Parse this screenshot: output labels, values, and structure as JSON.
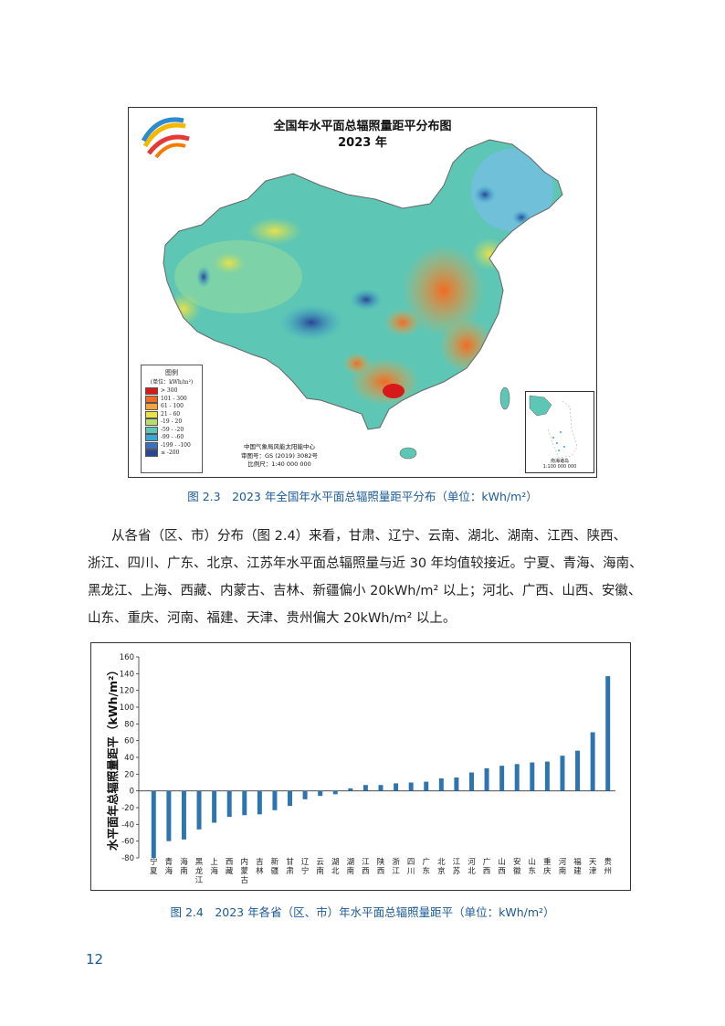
{
  "map": {
    "title_line1": "全国年水平面总辐照量距平分布图",
    "title_line2": "2023 年",
    "legend_title": "图例",
    "legend_unit": "(单位：kWh/m²)",
    "legend": [
      {
        "label": "> 300",
        "color": "#d7191c"
      },
      {
        "label": "101 - 300",
        "color": "#f26b22"
      },
      {
        "label": "61 - 100",
        "color": "#f9a43a"
      },
      {
        "label": "21 - 60",
        "color": "#e9e04a"
      },
      {
        "label": "-19 - 20",
        "color": "#b6dd6e"
      },
      {
        "label": "-59 - -20",
        "color": "#5ec6b4"
      },
      {
        "label": "-99 - -60",
        "color": "#39a8d8"
      },
      {
        "label": "-199 - -100",
        "color": "#3b6fbf"
      },
      {
        "label": "≤ -200",
        "color": "#2a4595"
      }
    ],
    "credit_1": "中国气象局风能太阳能中心",
    "credit_2": "审图号：GS (2019) 3082号",
    "credit_3": "比例尺：1:40 000 000",
    "inset_label_1": "南海诸岛",
    "inset_label_2": "1:100 000 000"
  },
  "captions": {
    "fig_2_3": "图 2.3　2023 年全国年水平面总辐照量距平分布（单位：kWh/m²）",
    "fig_2_4": "图 2.4　2023 年各省（区、市）年水平面总辐照量距平（单位：kWh/m²）"
  },
  "body": {
    "line1": "从各省（区、市）分布（图 2.4）来看，甘肃、辽宁、云南、湖北、湖南、江西、陕西、",
    "line2": "浙江、四川、广东、北京、江苏年水平面总辐照量与近 30 年均值较接近。宁夏、青海、海南、",
    "line3": "黑龙江、上海、西藏、内蒙古、吉林、新疆偏小 20kWh/m² 以上；河北、广西、山西、安徽、",
    "line4": "山东、重庆、河南、福建、天津、贵州偏大 20kWh/m² 以上。"
  },
  "page_number": "12",
  "chart_data": {
    "type": "bar",
    "ylabel": "水平面年总辐照量距平（kWh/m²）",
    "ylim": [
      -80,
      160
    ],
    "yticks": [
      -80,
      -60,
      -40,
      -20,
      0,
      20,
      40,
      60,
      80,
      100,
      120,
      140,
      160
    ],
    "bar_color": "#2e75b0",
    "categories": [
      "宁夏",
      "青海",
      "海南",
      "黑龙江",
      "上海",
      "西藏",
      "内蒙古",
      "吉林",
      "新疆",
      "甘肃",
      "辽宁",
      "云南",
      "湖北",
      "湖南",
      "江西",
      "陕西",
      "浙江",
      "四川",
      "广东",
      "北京",
      "江苏",
      "河北",
      "广西",
      "山西",
      "安徽",
      "山东",
      "重庆",
      "河南",
      "福建",
      "天津",
      "贵州"
    ],
    "values": [
      -80,
      -60,
      -58,
      -46,
      -38,
      -31,
      -29,
      -28,
      -23,
      -18,
      -10,
      -6,
      -4,
      3,
      7,
      7,
      9,
      10,
      11,
      15,
      16,
      22,
      27,
      30,
      32,
      34,
      35,
      42,
      48,
      70,
      137
    ]
  }
}
